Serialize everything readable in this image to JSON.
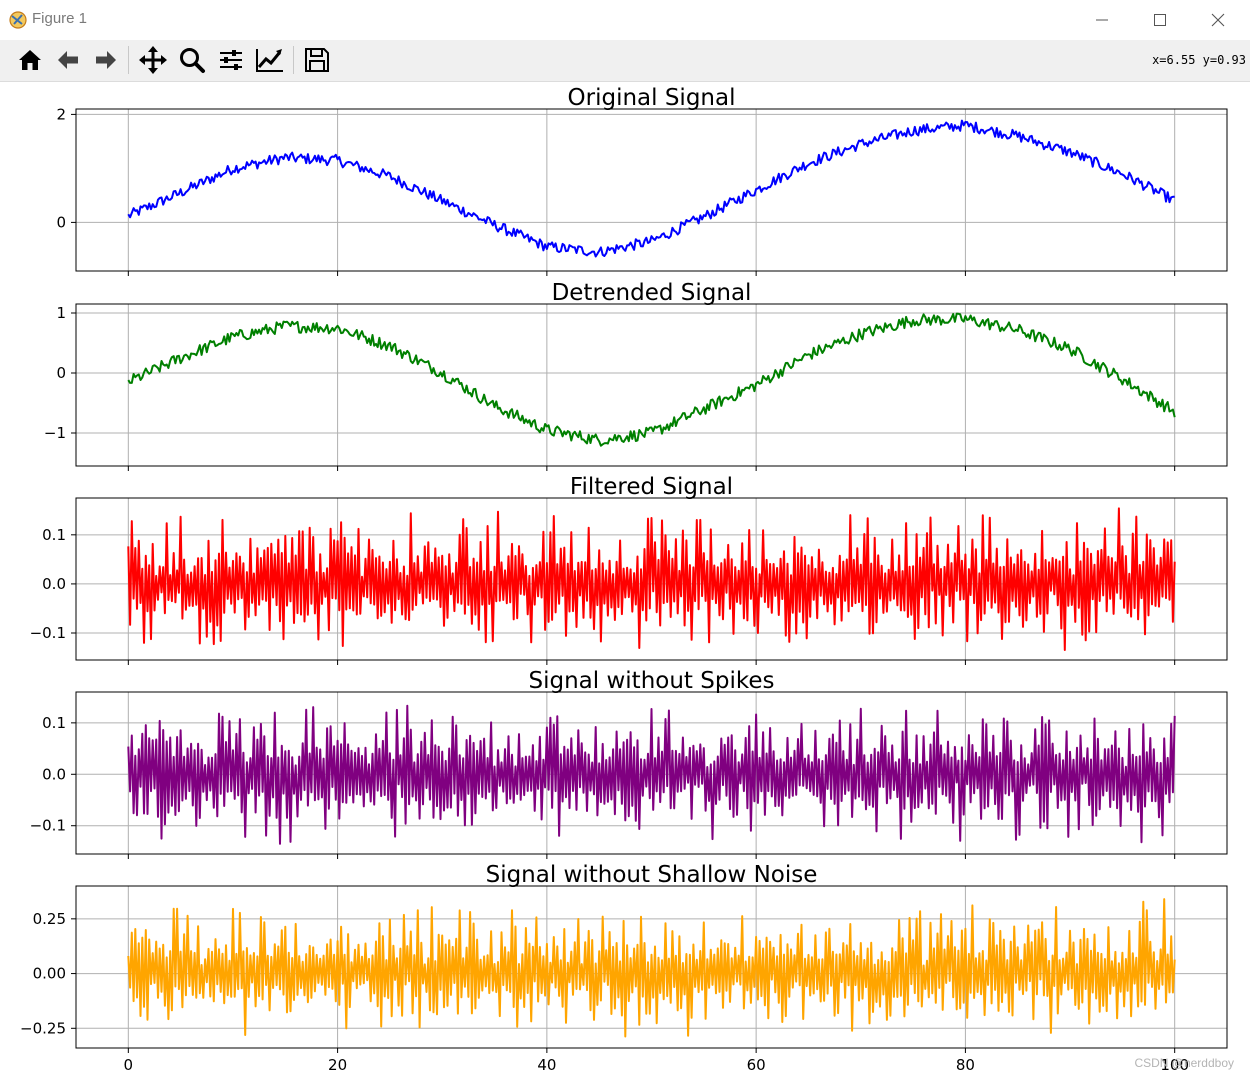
{
  "window": {
    "title": "Figure 1",
    "minimize_label": "—",
    "maximize_label": "☐",
    "close_label": "✕"
  },
  "toolbar": {
    "items": [
      {
        "name": "home-icon"
      },
      {
        "name": "back-arrow-icon"
      },
      {
        "name": "forward-arrow-icon"
      },
      {
        "name": "pan-icon"
      },
      {
        "name": "zoom-icon"
      },
      {
        "name": "subplots-config-icon"
      },
      {
        "name": "edit-axes-icon"
      },
      {
        "name": "save-icon"
      }
    ],
    "coords": "x=6.55 y=0.93"
  },
  "watermark": "CSDN @nerddboy",
  "colors": {
    "original": "#0000ff",
    "detrended": "#008000",
    "filtered": "#ff0000",
    "spikes": "#800080",
    "shallow": "#ffa500",
    "grid": "#b0b0b0"
  },
  "chart_data": [
    {
      "type": "line",
      "title": "Original Signal",
      "xlim": [
        -5,
        105
      ],
      "ylim": [
        -0.9,
        2.1
      ],
      "yticks": [
        {
          "v": 2,
          "label": "2"
        },
        {
          "v": 0,
          "label": "0"
        }
      ],
      "xticks": [
        0,
        20,
        40,
        60,
        80,
        100
      ],
      "show_xticklabels": false,
      "grid": true,
      "series": [
        {
          "color": "#0000ff",
          "x": [
            0,
            5,
            10,
            15,
            20,
            25,
            30,
            35,
            40,
            45,
            50,
            55,
            60,
            65,
            70,
            75,
            80,
            85,
            90,
            95,
            100
          ],
          "values": [
            0.12,
            0.55,
            1.0,
            1.2,
            1.15,
            0.85,
            0.4,
            -0.05,
            -0.45,
            -0.55,
            -0.35,
            0.1,
            0.6,
            1.1,
            1.45,
            1.7,
            1.8,
            1.6,
            1.3,
            0.9,
            0.4
          ],
          "noise": 0.1
        }
      ]
    },
    {
      "type": "line",
      "title": "Detrended Signal",
      "xlim": [
        -5,
        105
      ],
      "ylim": [
        -1.55,
        1.15
      ],
      "yticks": [
        {
          "v": 1,
          "label": "1"
        },
        {
          "v": 0,
          "label": "0"
        },
        {
          "v": -1,
          "label": "−1"
        }
      ],
      "xticks": [
        0,
        20,
        40,
        60,
        80,
        100
      ],
      "show_xticklabels": false,
      "grid": true,
      "series": [
        {
          "color": "#008000",
          "x": [
            0,
            5,
            10,
            15,
            20,
            25,
            30,
            35,
            40,
            45,
            50,
            55,
            60,
            65,
            70,
            75,
            80,
            85,
            90,
            95,
            100
          ],
          "values": [
            -0.15,
            0.25,
            0.6,
            0.78,
            0.75,
            0.45,
            0.0,
            -0.55,
            -0.95,
            -1.12,
            -1.0,
            -0.6,
            -0.2,
            0.3,
            0.65,
            0.88,
            0.9,
            0.72,
            0.4,
            -0.1,
            -0.65
          ],
          "noise": 0.1
        }
      ]
    },
    {
      "type": "line",
      "title": "Filtered Signal",
      "xlim": [
        -5,
        105
      ],
      "ylim": [
        -0.155,
        0.175
      ],
      "yticks": [
        {
          "v": 0.1,
          "label": "0.1"
        },
        {
          "v": 0,
          "label": "0.0"
        },
        {
          "v": -0.1,
          "label": "−0.1"
        }
      ],
      "xticks": [
        0,
        20,
        40,
        60,
        80,
        100
      ],
      "show_xticklabels": false,
      "grid": true,
      "series": [
        {
          "color": "#ff0000",
          "oscillation_range": [
            -0.145,
            0.16
          ],
          "x_range": [
            0,
            100
          ]
        }
      ]
    },
    {
      "type": "line",
      "title": "Signal without Spikes",
      "xlim": [
        -5,
        105
      ],
      "ylim": [
        -0.155,
        0.16
      ],
      "yticks": [
        {
          "v": 0.1,
          "label": "0.1"
        },
        {
          "v": 0,
          "label": "0.0"
        },
        {
          "v": -0.1,
          "label": "−0.1"
        }
      ],
      "xticks": [
        0,
        20,
        40,
        60,
        80,
        100
      ],
      "show_xticklabels": false,
      "grid": true,
      "series": [
        {
          "color": "#800080",
          "oscillation_range": [
            -0.145,
            0.145
          ],
          "x_range": [
            0,
            100
          ]
        }
      ]
    },
    {
      "type": "line",
      "title": "Signal without Shallow Noise",
      "xlim": [
        -5,
        105
      ],
      "ylim": [
        -0.34,
        0.4
      ],
      "yticks": [
        {
          "v": 0.25,
          "label": "0.25"
        },
        {
          "v": 0,
          "label": "0.00"
        },
        {
          "v": -0.25,
          "label": "−0.25"
        }
      ],
      "xticks": [
        0,
        20,
        40,
        60,
        80,
        100
      ],
      "xticklabels": [
        "0",
        "20",
        "40",
        "60",
        "80",
        "100"
      ],
      "show_xticklabels": true,
      "grid": true,
      "series": [
        {
          "color": "#ffa500",
          "oscillation_range": [
            -0.3,
            0.36
          ],
          "x_range": [
            0,
            100
          ]
        }
      ]
    }
  ]
}
